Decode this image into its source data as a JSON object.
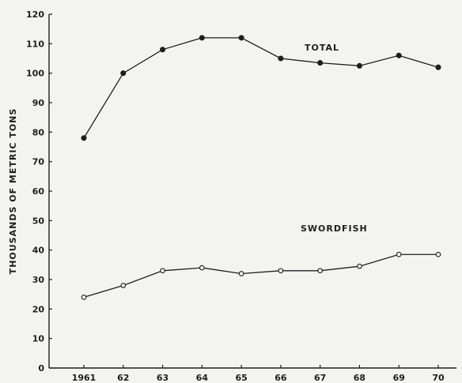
{
  "chart_data": {
    "type": "line",
    "title": "",
    "xlabel": "",
    "ylabel": "THOUSANDS OF METRIC TONS",
    "categories": [
      "1961",
      "62",
      "63",
      "64",
      "65",
      "66",
      "67",
      "68",
      "69",
      "70"
    ],
    "ylim": [
      0,
      120
    ],
    "yticks": [
      "0",
      "10",
      "20",
      "30",
      "40",
      "50",
      "60",
      "70",
      "80",
      "90",
      "100",
      "110",
      "120"
    ],
    "grid": false,
    "legend": "inline-labels",
    "series": [
      {
        "name": "TOTAL",
        "marker": "filled-circle",
        "values": [
          78,
          100,
          108,
          112,
          112,
          105,
          103.5,
          102.5,
          106,
          102
        ]
      },
      {
        "name": "SWORDFISH",
        "marker": "open-circle",
        "values": [
          24,
          28,
          33,
          34,
          32,
          33,
          33,
          34.5,
          38.5,
          38.5
        ]
      }
    ],
    "colors": {
      "ink": "#1e1e1e",
      "background": "#f3f4ef"
    }
  }
}
